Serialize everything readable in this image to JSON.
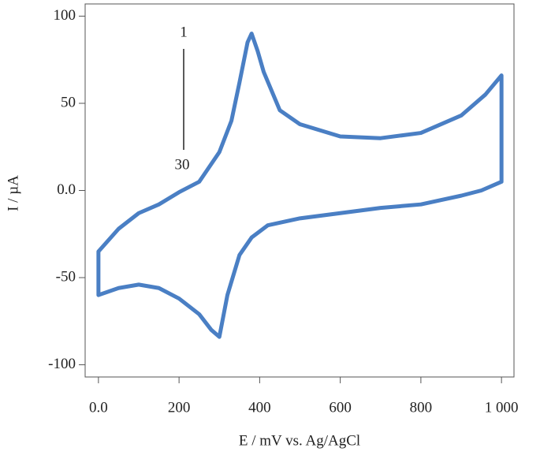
{
  "chart_data": {
    "type": "line",
    "x_label": "E / mV vs. Ag/AgCl",
    "y_label": "I / µA",
    "annotations": [
      "1",
      "30"
    ],
    "x": [
      0,
      0,
      50,
      100,
      150,
      200,
      250,
      300,
      330,
      350,
      370,
      380,
      395,
      410,
      450,
      500,
      600,
      700,
      800,
      900,
      960,
      1000,
      1000,
      950,
      900,
      800,
      700,
      600,
      500,
      420,
      380,
      350,
      320,
      300,
      280,
      250,
      200,
      150,
      100,
      50,
      0
    ],
    "series": [
      {
        "name": "I",
        "color": "#4a7fc4",
        "values": [
          -60,
          -35,
          -22,
          -13,
          -8,
          -1,
          5,
          22,
          40,
          62,
          85,
          90,
          80,
          68,
          46,
          38,
          31,
          30,
          33,
          43,
          55,
          66,
          5,
          0,
          -3,
          -8,
          -10,
          -13,
          -16,
          -20,
          -27,
          -37,
          -60,
          -84,
          -80,
          -71,
          -62,
          -56,
          -54,
          -56,
          -60
        ]
      }
    ],
    "xlim": [
      -33,
      1031
    ],
    "ylim": [
      -107,
      107
    ],
    "xticks": [
      {
        "value": 0,
        "label": "0.0"
      },
      200,
      400,
      600,
      800,
      {
        "value": 1000,
        "label": "1 000"
      }
    ],
    "yticks": [
      100,
      50,
      {
        "value": 0,
        "label": "0.0"
      },
      -50,
      -100
    ]
  }
}
